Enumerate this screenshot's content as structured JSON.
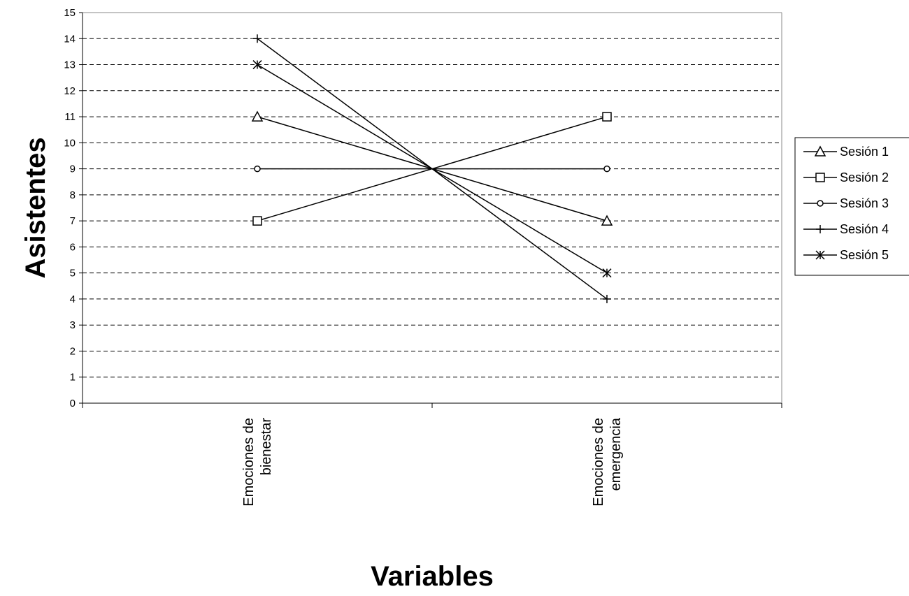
{
  "chart_data": {
    "type": "line",
    "title": "",
    "xlabel": "Variables",
    "ylabel": "Asistentes",
    "categories": [
      [
        "Emociones de",
        "bienestar"
      ],
      [
        "Emociones de",
        "emergencia"
      ]
    ],
    "ylim": [
      0,
      15
    ],
    "yticks": [
      0,
      1,
      2,
      3,
      4,
      5,
      6,
      7,
      8,
      9,
      10,
      11,
      12,
      13,
      14,
      15
    ],
    "grid": "dashed horizontal",
    "legend": "right",
    "series": [
      {
        "name": "Sesión 1",
        "marker": "triangle",
        "values": [
          11,
          7
        ]
      },
      {
        "name": "Sesión 2",
        "marker": "square",
        "values": [
          7,
          11
        ]
      },
      {
        "name": "Sesión 3",
        "marker": "circle",
        "values": [
          9,
          9
        ]
      },
      {
        "name": "Sesión 4",
        "marker": "plus",
        "values": [
          14,
          4
        ]
      },
      {
        "name": "Sesión 5",
        "marker": "asterisk",
        "values": [
          13,
          5
        ]
      }
    ],
    "colors": {
      "line": "#000000",
      "grid": "#000000",
      "background": "#ffffff"
    }
  }
}
